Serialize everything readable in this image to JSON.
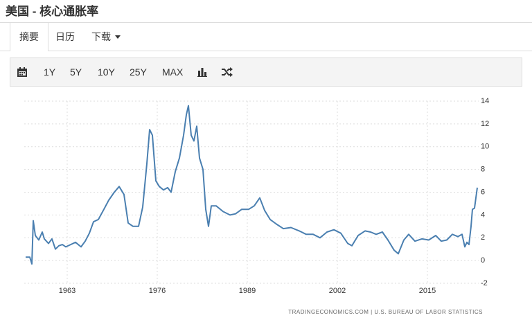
{
  "header": {
    "title": "美国 - 核心通胀率"
  },
  "tabs": [
    "摘要",
    "日历",
    "下载"
  ],
  "toolbar": [
    "1Y",
    "5Y",
    "10Y",
    "25Y",
    "MAX"
  ],
  "chart_data": {
    "type": "line",
    "source": "TRADINGECONOMICS.COM | U.S. BUREAU OF LABOR STATISTICS",
    "color": "#4a7fb0",
    "grid": true,
    "xlim": [
      1956.8,
      2022.4
    ],
    "xticks": [
      1963,
      1976,
      1989,
      2002,
      2015
    ],
    "ylim": [
      -2,
      14
    ],
    "yticks": [
      -2,
      0,
      2,
      4,
      6,
      8,
      10,
      12,
      14
    ],
    "x": [
      1957.0,
      1957.6,
      1957.9,
      1958.1,
      1958.4,
      1958.9,
      1959.4,
      1959.7,
      1960.3,
      1960.8,
      1961.3,
      1961.8,
      1962.3,
      1962.8,
      1963.5,
      1964.2,
      1965.0,
      1965.6,
      1966.2,
      1966.8,
      1967.5,
      1968.3,
      1969.0,
      1969.8,
      1970.5,
      1971.2,
      1971.8,
      1972.5,
      1973.3,
      1973.9,
      1974.5,
      1974.9,
      1975.3,
      1975.8,
      1976.3,
      1976.9,
      1977.5,
      1978.0,
      1978.6,
      1979.2,
      1979.8,
      1980.2,
      1980.5,
      1980.9,
      1981.3,
      1981.7,
      1982.1,
      1982.6,
      1983.0,
      1983.4,
      1983.8,
      1984.5,
      1985.5,
      1986.5,
      1987.3,
      1988.2,
      1989.2,
      1990.0,
      1990.8,
      1991.5,
      1992.3,
      1993.2,
      1994.2,
      1995.3,
      1996.5,
      1997.5,
      1998.5,
      1999.5,
      2000.5,
      2001.5,
      2002.5,
      2003.5,
      2004.1,
      2005.0,
      2006.0,
      2006.8,
      2007.6,
      2008.5,
      2009.3,
      2010.2,
      2010.8,
      2011.6,
      2012.3,
      2013.2,
      2014.2,
      2015.2,
      2016.2,
      2017.0,
      2017.8,
      2018.6,
      2019.4,
      2020.0,
      2020.4,
      2020.7,
      2021.0,
      2021.3,
      2021.5,
      2021.8,
      2022.2
    ],
    "values": [
      0.3,
      0.3,
      -0.3,
      3.5,
      2.2,
      1.8,
      2.5,
      1.9,
      1.5,
      1.9,
      1.0,
      1.3,
      1.4,
      1.2,
      1.4,
      1.6,
      1.2,
      1.7,
      2.4,
      3.4,
      3.6,
      4.5,
      5.3,
      6.0,
      6.5,
      5.8,
      3.3,
      3.0,
      3.0,
      4.7,
      8.5,
      11.5,
      11.0,
      7.0,
      6.5,
      6.2,
      6.4,
      6.0,
      7.8,
      9.0,
      11.0,
      12.8,
      13.6,
      11.0,
      10.5,
      11.8,
      9.0,
      8.0,
      4.5,
      3.0,
      4.8,
      4.8,
      4.3,
      4.0,
      4.1,
      4.5,
      4.5,
      4.8,
      5.5,
      4.4,
      3.6,
      3.2,
      2.8,
      2.9,
      2.6,
      2.3,
      2.3,
      2.0,
      2.5,
      2.7,
      2.4,
      1.5,
      1.3,
      2.2,
      2.6,
      2.5,
      2.3,
      2.5,
      1.8,
      0.9,
      0.6,
      1.8,
      2.3,
      1.7,
      1.9,
      1.8,
      2.2,
      1.7,
      1.8,
      2.3,
      2.1,
      2.3,
      1.2,
      1.6,
      1.4,
      3.0,
      4.5,
      4.6,
      6.4
    ]
  }
}
